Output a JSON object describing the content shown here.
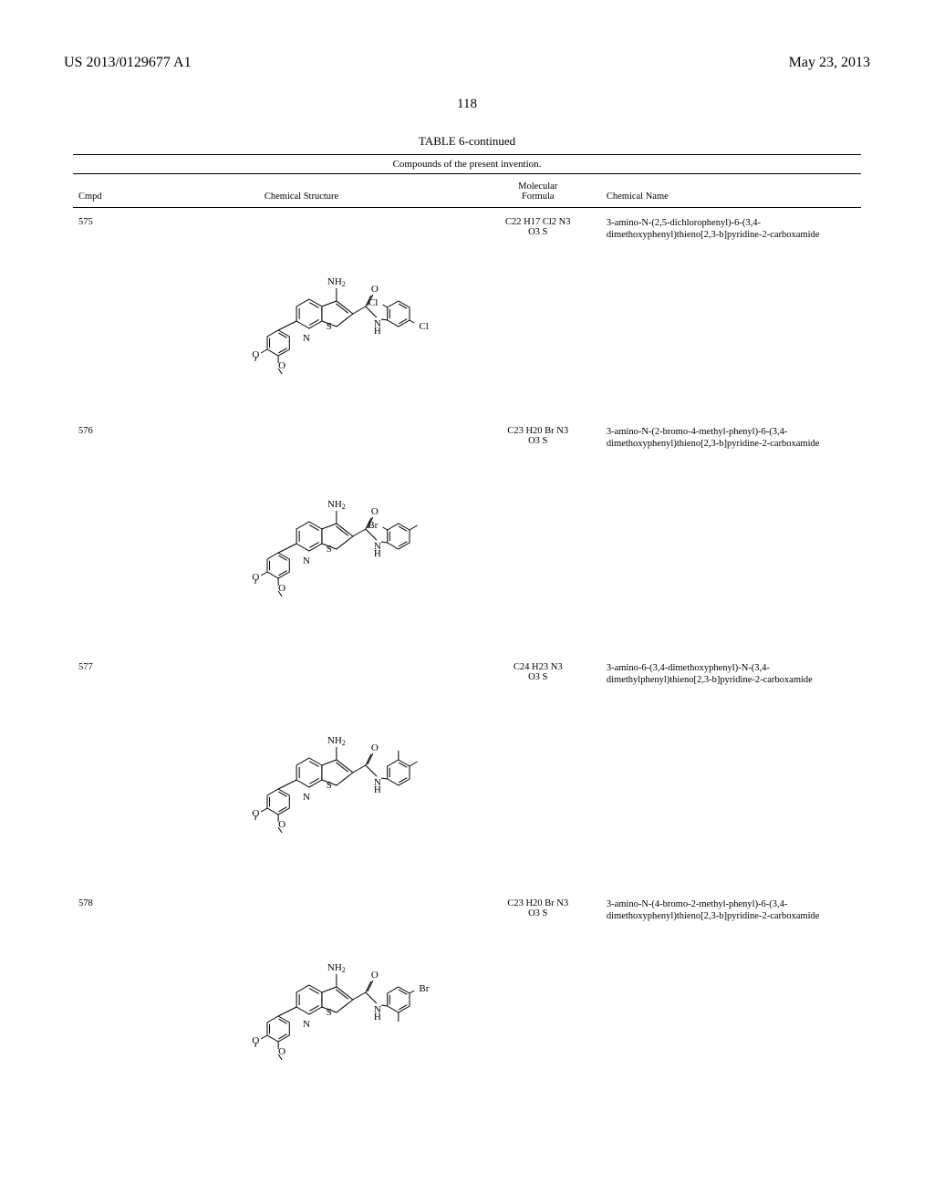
{
  "header": {
    "left": "US 2013/0129677 A1",
    "right": "May 23, 2013"
  },
  "page_number": "118",
  "table": {
    "title": "TABLE 6-continued",
    "caption": "Compounds of the present invention.",
    "columns": {
      "cmpd": "Cmpd",
      "structure": "Chemical Structure",
      "formula_line1": "Molecular",
      "formula_line2": "Formula",
      "name": "Chemical Name"
    },
    "rows": [
      {
        "cmpd": "575",
        "formula": "C22 H17 Cl2 N3 O3 S",
        "name": "3-amino-N-(2,5-dichlorophenyl)-6-(3,4-dimethoxyphenyl)thieno[2,3-b]pyridine-2-carboxamide",
        "structure": {
          "type": "thienopyridine-carboxamide",
          "right_ring_subs": [
            {
              "pos": "ortho",
              "label": "Cl"
            },
            {
              "pos": "meta2",
              "label": "Cl"
            }
          ]
        }
      },
      {
        "cmpd": "576",
        "formula": "C23 H20 Br N3 O3 S",
        "name": "3-amino-N-(2-bromo-4-methyl-phenyl)-6-(3,4-dimethoxyphenyl)thieno[2,3-b]pyridine-2-carboxamide",
        "structure": {
          "type": "thienopyridine-carboxamide",
          "right_ring_subs": [
            {
              "pos": "ortho",
              "label": "Br"
            },
            {
              "pos": "para",
              "label": "CH3-line"
            }
          ]
        }
      },
      {
        "cmpd": "577",
        "formula": "C24 H23 N3 O3 S",
        "name": "3-amino-6-(3,4-dimethoxyphenyl)-N-(3,4-dimethylphenyl)thieno[2,3-b]pyridine-2-carboxamide",
        "structure": {
          "type": "thienopyridine-carboxamide",
          "right_ring_subs": [
            {
              "pos": "meta",
              "label": "CH3-line"
            },
            {
              "pos": "para",
              "label": "CH3-line"
            }
          ]
        }
      },
      {
        "cmpd": "578",
        "formula": "C23 H20 Br N3 O3 S",
        "name": "3-amino-N-(4-bromo-2-methyl-phenyl)-6-(3,4-dimethoxyphenyl)thieno[2,3-b]pyridine-2-carboxamide",
        "structure": {
          "type": "thienopyridine-carboxamide",
          "right_ring_subs": [
            {
              "pos": "para",
              "label": "Br"
            },
            {
              "pos": "ortho2",
              "label": "CH3-line"
            }
          ]
        }
      }
    ]
  },
  "style": {
    "stroke": "#000000",
    "stroke_width": 1,
    "font_family": "Times New Roman",
    "text_color": "#000000",
    "background": "#ffffff"
  }
}
